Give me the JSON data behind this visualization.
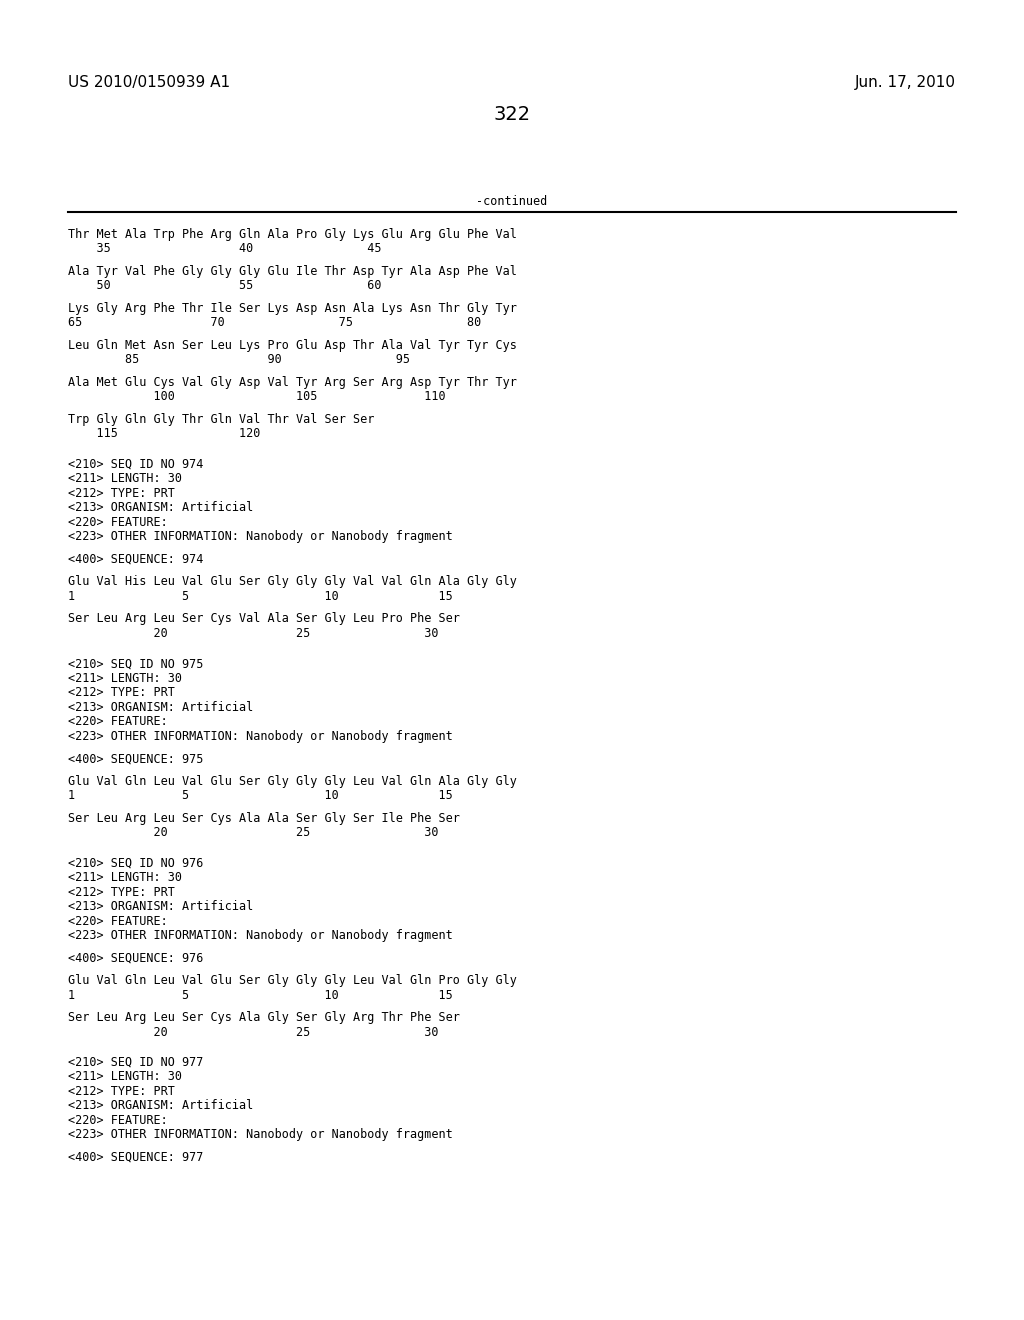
{
  "header_left": "US 2010/0150939 A1",
  "header_right": "Jun. 17, 2010",
  "page_number": "322",
  "continued_label": "-continued",
  "background_color": "#ffffff",
  "text_color": "#000000",
  "font_size_header": 11,
  "font_size_body": 8.5,
  "font_size_page_num": 14,
  "content_lines": [
    {
      "text": "Thr Met Ala Trp Phe Arg Gln Ala Pro Gly Lys Glu Arg Glu Phe Val",
      "type": "seq"
    },
    {
      "text": "    35                  40                45",
      "type": "num"
    },
    {
      "text": "",
      "type": "blank"
    },
    {
      "text": "Ala Tyr Val Phe Gly Gly Gly Glu Ile Thr Asp Tyr Ala Asp Phe Val",
      "type": "seq"
    },
    {
      "text": "    50                  55                60",
      "type": "num"
    },
    {
      "text": "",
      "type": "blank"
    },
    {
      "text": "Lys Gly Arg Phe Thr Ile Ser Lys Asp Asn Ala Lys Asn Thr Gly Tyr",
      "type": "seq"
    },
    {
      "text": "65                  70                75                80",
      "type": "num"
    },
    {
      "text": "",
      "type": "blank"
    },
    {
      "text": "Leu Gln Met Asn Ser Leu Lys Pro Glu Asp Thr Ala Val Tyr Tyr Cys",
      "type": "seq"
    },
    {
      "text": "        85                  90                95",
      "type": "num"
    },
    {
      "text": "",
      "type": "blank"
    },
    {
      "text": "Ala Met Glu Cys Val Gly Asp Val Tyr Arg Ser Arg Asp Tyr Thr Tyr",
      "type": "seq"
    },
    {
      "text": "            100                 105               110",
      "type": "num"
    },
    {
      "text": "",
      "type": "blank"
    },
    {
      "text": "Trp Gly Gln Gly Thr Gln Val Thr Val Ser Ser",
      "type": "seq"
    },
    {
      "text": "    115                 120",
      "type": "num"
    },
    {
      "text": "",
      "type": "blank"
    },
    {
      "text": "",
      "type": "blank"
    },
    {
      "text": "<210> SEQ ID NO 974",
      "type": "meta"
    },
    {
      "text": "<211> LENGTH: 30",
      "type": "meta"
    },
    {
      "text": "<212> TYPE: PRT",
      "type": "meta"
    },
    {
      "text": "<213> ORGANISM: Artificial",
      "type": "meta"
    },
    {
      "text": "<220> FEATURE:",
      "type": "meta"
    },
    {
      "text": "<223> OTHER INFORMATION: Nanobody or Nanobody fragment",
      "type": "meta"
    },
    {
      "text": "",
      "type": "blank"
    },
    {
      "text": "<400> SEQUENCE: 974",
      "type": "meta"
    },
    {
      "text": "",
      "type": "blank"
    },
    {
      "text": "Glu Val His Leu Val Glu Ser Gly Gly Gly Val Val Gln Ala Gly Gly",
      "type": "seq"
    },
    {
      "text": "1               5                   10              15",
      "type": "num"
    },
    {
      "text": "",
      "type": "blank"
    },
    {
      "text": "Ser Leu Arg Leu Ser Cys Val Ala Ser Gly Leu Pro Phe Ser",
      "type": "seq"
    },
    {
      "text": "            20                  25                30",
      "type": "num"
    },
    {
      "text": "",
      "type": "blank"
    },
    {
      "text": "",
      "type": "blank"
    },
    {
      "text": "<210> SEQ ID NO 975",
      "type": "meta"
    },
    {
      "text": "<211> LENGTH: 30",
      "type": "meta"
    },
    {
      "text": "<212> TYPE: PRT",
      "type": "meta"
    },
    {
      "text": "<213> ORGANISM: Artificial",
      "type": "meta"
    },
    {
      "text": "<220> FEATURE:",
      "type": "meta"
    },
    {
      "text": "<223> OTHER INFORMATION: Nanobody or Nanobody fragment",
      "type": "meta"
    },
    {
      "text": "",
      "type": "blank"
    },
    {
      "text": "<400> SEQUENCE: 975",
      "type": "meta"
    },
    {
      "text": "",
      "type": "blank"
    },
    {
      "text": "Glu Val Gln Leu Val Glu Ser Gly Gly Gly Leu Val Gln Ala Gly Gly",
      "type": "seq"
    },
    {
      "text": "1               5                   10              15",
      "type": "num"
    },
    {
      "text": "",
      "type": "blank"
    },
    {
      "text": "Ser Leu Arg Leu Ser Cys Ala Ala Ser Gly Ser Ile Phe Ser",
      "type": "seq"
    },
    {
      "text": "            20                  25                30",
      "type": "num"
    },
    {
      "text": "",
      "type": "blank"
    },
    {
      "text": "",
      "type": "blank"
    },
    {
      "text": "<210> SEQ ID NO 976",
      "type": "meta"
    },
    {
      "text": "<211> LENGTH: 30",
      "type": "meta"
    },
    {
      "text": "<212> TYPE: PRT",
      "type": "meta"
    },
    {
      "text": "<213> ORGANISM: Artificial",
      "type": "meta"
    },
    {
      "text": "<220> FEATURE:",
      "type": "meta"
    },
    {
      "text": "<223> OTHER INFORMATION: Nanobody or Nanobody fragment",
      "type": "meta"
    },
    {
      "text": "",
      "type": "blank"
    },
    {
      "text": "<400> SEQUENCE: 976",
      "type": "meta"
    },
    {
      "text": "",
      "type": "blank"
    },
    {
      "text": "Glu Val Gln Leu Val Glu Ser Gly Gly Gly Leu Val Gln Pro Gly Gly",
      "type": "seq"
    },
    {
      "text": "1               5                   10              15",
      "type": "num"
    },
    {
      "text": "",
      "type": "blank"
    },
    {
      "text": "Ser Leu Arg Leu Ser Cys Ala Gly Ser Gly Arg Thr Phe Ser",
      "type": "seq"
    },
    {
      "text": "            20                  25                30",
      "type": "num"
    },
    {
      "text": "",
      "type": "blank"
    },
    {
      "text": "",
      "type": "blank"
    },
    {
      "text": "<210> SEQ ID NO 977",
      "type": "meta"
    },
    {
      "text": "<211> LENGTH: 30",
      "type": "meta"
    },
    {
      "text": "<212> TYPE: PRT",
      "type": "meta"
    },
    {
      "text": "<213> ORGANISM: Artificial",
      "type": "meta"
    },
    {
      "text": "<220> FEATURE:",
      "type": "meta"
    },
    {
      "text": "<223> OTHER INFORMATION: Nanobody or Nanobody fragment",
      "type": "meta"
    },
    {
      "text": "",
      "type": "blank"
    },
    {
      "text": "<400> SEQUENCE: 977",
      "type": "meta"
    }
  ]
}
